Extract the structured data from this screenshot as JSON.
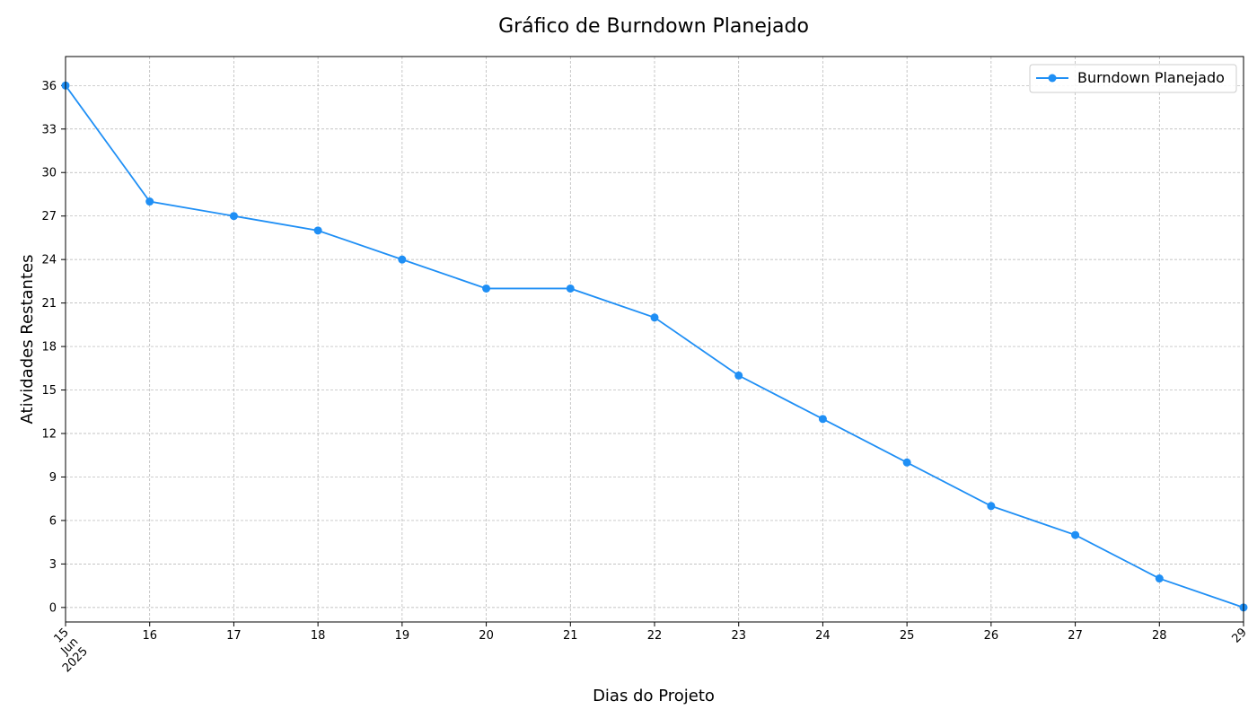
{
  "chart_data": {
    "type": "line",
    "title": "Gráfico de Burndown Planejado",
    "xlabel": "Dias do Projeto",
    "ylabel": "Atividades Restantes",
    "x": [
      "2025-06-15",
      "2025-06-16",
      "2025-06-17",
      "2025-06-18",
      "2025-06-19",
      "2025-06-20",
      "2025-06-21",
      "2025-06-22",
      "2025-06-23",
      "2025-06-24",
      "2025-06-25",
      "2025-06-26",
      "2025-06-27",
      "2025-06-28",
      "2025-06-29"
    ],
    "x_tick_labels": [
      [
        "15",
        "Jun",
        "2025"
      ],
      [
        "16"
      ],
      [
        "17"
      ],
      [
        "18"
      ],
      [
        "19"
      ],
      [
        "20"
      ],
      [
        "21"
      ],
      [
        "22"
      ],
      [
        "23"
      ],
      [
        "24"
      ],
      [
        "25"
      ],
      [
        "26"
      ],
      [
        "27"
      ],
      [
        "28"
      ],
      [
        "29"
      ]
    ],
    "series": [
      {
        "name": "Burndown Planejado",
        "color": "#1f8ff5",
        "marker": "circle",
        "values": [
          36,
          28,
          27,
          26,
          24,
          22,
          22,
          20,
          16,
          13,
          10,
          7,
          5,
          2,
          0
        ]
      }
    ],
    "ylim": [
      -1,
      38
    ],
    "y_ticks": [
      0,
      3,
      6,
      9,
      12,
      15,
      18,
      21,
      24,
      27,
      30,
      33,
      36
    ],
    "grid": true,
    "legend_position": "top-right"
  }
}
